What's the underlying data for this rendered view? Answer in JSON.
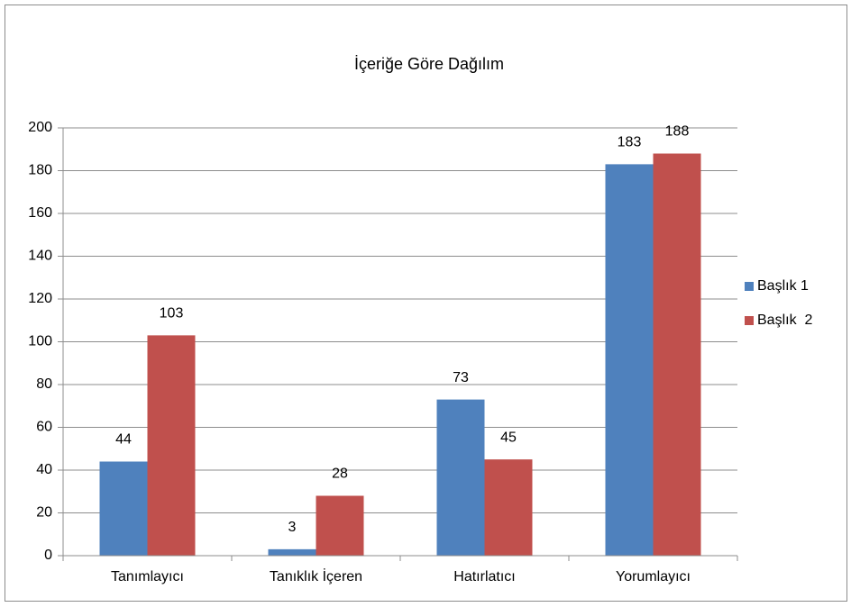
{
  "chart_data": {
    "type": "bar",
    "title": "İçeriğe Göre Dağılım",
    "categories": [
      "Tanımlayıcı",
      "Tanıklık İçeren",
      "Hatırlatıcı",
      "Yorumlayıcı"
    ],
    "series": [
      {
        "name": "Başlık 1",
        "color": "#4f81bd",
        "values": [
          44,
          3,
          73,
          183
        ]
      },
      {
        "name": "Başlık  2",
        "color": "#c0504d",
        "values": [
          103,
          28,
          45,
          188
        ]
      }
    ],
    "ylim": [
      0,
      200
    ],
    "yticks": [
      0,
      20,
      40,
      60,
      80,
      100,
      120,
      140,
      160,
      180,
      200
    ],
    "grid": true,
    "legend": "right"
  }
}
